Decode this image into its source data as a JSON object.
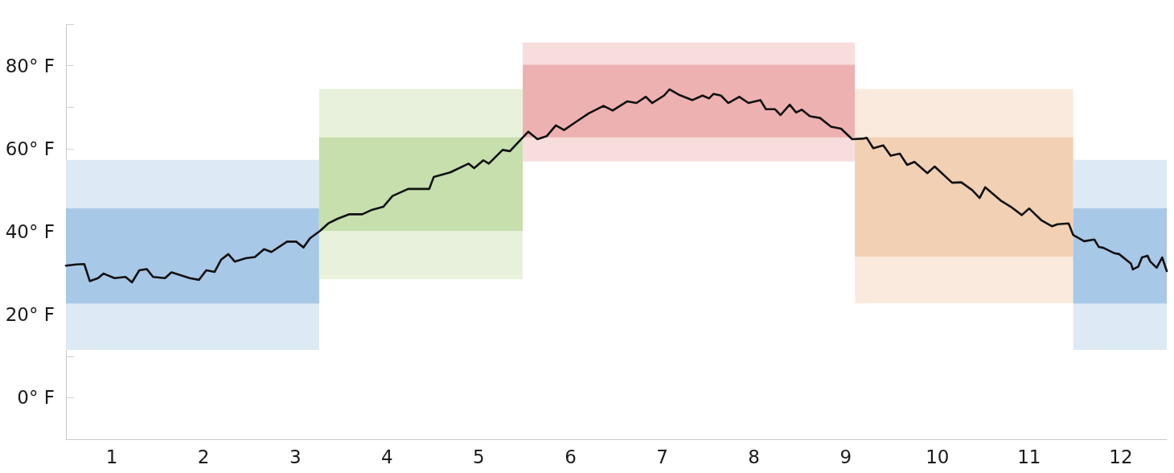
{
  "chart_data": {
    "type": "line",
    "xlim": [
      0.5,
      12.5
    ],
    "xticks": [
      1,
      2,
      3,
      4,
      5,
      6,
      7,
      8,
      9,
      10,
      11,
      12
    ],
    "ylim": [
      -10,
      90
    ],
    "yticks": [
      {
        "value": -10,
        "label": null
      },
      {
        "value": 0,
        "label": "0° F"
      },
      {
        "value": 10,
        "label": null
      },
      {
        "value": 20,
        "label": "20° F"
      },
      {
        "value": 30,
        "label": null
      },
      {
        "value": 40,
        "label": "40° F"
      },
      {
        "value": 50,
        "label": null
      },
      {
        "value": 60,
        "label": "60° F"
      },
      {
        "value": 70,
        "label": null
      },
      {
        "value": 80,
        "label": "80° F"
      },
      {
        "value": 90,
        "label": null
      }
    ],
    "grid": false,
    "marker": "none",
    "line_style": "solid",
    "series": [
      {
        "type": "area",
        "color": "#dde9f5",
        "x": [
          0.5,
          3.26
        ],
        "lower": [
          11.5,
          11.5
        ],
        "upper": [
          57.3,
          57.3
        ],
        "values": [
          null,
          null
        ]
      },
      {
        "type": "area",
        "color": "#a8c8e7",
        "x": [
          0.5,
          3.26
        ],
        "lower": [
          22.7,
          22.7
        ],
        "upper": [
          45.6,
          45.6
        ],
        "values": [
          null,
          null
        ]
      },
      {
        "type": "area",
        "color": "#e7f1db",
        "x": [
          3.26,
          5.48
        ],
        "lower": [
          28.5,
          28.5
        ],
        "upper": [
          74.4,
          74.4
        ],
        "values": [
          null,
          null
        ]
      },
      {
        "type": "area",
        "color": "#c6dfad",
        "x": [
          3.26,
          5.48
        ],
        "lower": [
          40.2,
          40.2
        ],
        "upper": [
          62.7,
          62.7
        ],
        "values": [
          null,
          null
        ]
      },
      {
        "type": "area",
        "color": "#f8dddd",
        "x": [
          5.48,
          9.1
        ],
        "lower": [
          56.9,
          56.9
        ],
        "upper": [
          85.6,
          85.6
        ],
        "values": [
          null,
          null
        ]
      },
      {
        "type": "area",
        "color": "#eeb1b1",
        "x": [
          5.48,
          9.1
        ],
        "lower": [
          62.7,
          62.7
        ],
        "upper": [
          80.2,
          80.2
        ],
        "values": [
          null,
          null
        ]
      },
      {
        "type": "area",
        "color": "#faeadd",
        "x": [
          9.1,
          11.48
        ],
        "lower": [
          22.7,
          22.7
        ],
        "upper": [
          74.4,
          74.4
        ],
        "values": [
          null,
          null
        ]
      },
      {
        "type": "area",
        "color": "#f2d0b4",
        "x": [
          9.1,
          11.48
        ],
        "lower": [
          34.0,
          34.0
        ],
        "upper": [
          62.7,
          62.7
        ],
        "values": [
          null,
          null
        ]
      },
      {
        "type": "area",
        "color": "#dde9f5",
        "x": [
          11.48,
          12.5
        ],
        "lower": [
          11.5,
          11.5
        ],
        "upper": [
          57.3,
          57.3
        ],
        "values": [
          null,
          null
        ]
      },
      {
        "type": "area",
        "color": "#a8c8e7",
        "x": [
          11.48,
          12.5
        ],
        "lower": [
          22.7,
          22.7
        ],
        "upper": [
          45.6,
          45.6
        ],
        "values": [
          null,
          null
        ]
      },
      {
        "color": "#111111",
        "x": [
          0.5,
          0.61,
          0.7,
          0.76,
          0.85,
          0.91,
          1.03,
          1.15,
          1.22,
          1.3,
          1.38,
          1.45,
          1.58,
          1.65,
          1.85,
          1.95,
          2.03,
          2.12,
          2.19,
          2.27,
          2.34,
          2.46,
          2.56,
          2.66,
          2.74,
          2.91,
          3.01,
          3.09,
          3.16,
          3.27,
          3.36,
          3.46,
          3.59,
          3.73,
          3.84,
          3.96,
          4.06,
          4.23,
          4.46,
          4.51,
          4.69,
          4.89,
          4.95,
          5.05,
          5.11,
          5.26,
          5.34,
          5.54,
          5.64,
          5.74,
          5.84,
          5.93,
          6.07,
          6.2,
          6.36,
          6.46,
          6.62,
          6.72,
          6.82,
          6.89,
          7.02,
          7.08,
          7.18,
          7.33,
          7.44,
          7.51,
          7.56,
          7.64,
          7.72,
          7.84,
          7.94,
          8.07,
          8.13,
          8.23,
          8.29,
          8.39,
          8.46,
          8.52,
          8.61,
          8.72,
          8.84,
          8.95,
          9.07,
          9.18,
          9.23,
          9.3,
          9.41,
          9.49,
          9.59,
          9.67,
          9.75,
          9.89,
          9.97,
          10.16,
          10.26,
          10.38,
          10.46,
          10.52,
          10.69,
          10.8,
          10.92,
          11.0,
          11.13,
          11.25,
          11.31,
          11.43,
          11.48,
          11.6,
          11.71,
          11.76,
          11.81,
          11.93,
          11.98,
          12.11,
          12.13,
          12.19,
          12.23,
          12.29,
          12.32,
          12.39,
          12.45,
          12.5
        ],
        "values": [
          31.8,
          32.1,
          32.2,
          28.1,
          28.8,
          29.9,
          28.8,
          29.1,
          27.8,
          30.7,
          31.0,
          29.1,
          28.8,
          30.2,
          28.8,
          28.4,
          30.7,
          30.3,
          33.2,
          34.6,
          32.8,
          33.6,
          33.9,
          35.8,
          35.1,
          37.6,
          37.6,
          36.2,
          38.4,
          40.2,
          42.0,
          43.1,
          44.2,
          44.2,
          45.3,
          46.0,
          48.6,
          50.3,
          50.3,
          53.2,
          54.3,
          56.4,
          55.3,
          57.2,
          56.4,
          59.7,
          59.4,
          64.1,
          62.3,
          63.0,
          65.6,
          64.5,
          66.6,
          68.5,
          70.3,
          69.2,
          71.4,
          71.0,
          72.5,
          71.0,
          72.8,
          74.3,
          73.0,
          71.7,
          72.8,
          72.1,
          73.2,
          72.8,
          71.0,
          72.5,
          71.0,
          71.7,
          69.5,
          69.5,
          68.1,
          70.6,
          68.7,
          69.4,
          67.8,
          67.4,
          65.3,
          64.8,
          62.3,
          62.4,
          62.6,
          60.1,
          60.8,
          58.3,
          58.8,
          56.1,
          56.8,
          54.1,
          55.7,
          51.8,
          51.9,
          50.0,
          48.1,
          50.7,
          47.5,
          46.0,
          44.0,
          45.6,
          42.8,
          41.3,
          41.8,
          42.0,
          39.2,
          37.7,
          38.1,
          36.3,
          36.1,
          34.8,
          34.6,
          32.3,
          30.9,
          31.6,
          33.8,
          34.2,
          32.8,
          31.3,
          33.8,
          30.5
        ]
      }
    ]
  }
}
